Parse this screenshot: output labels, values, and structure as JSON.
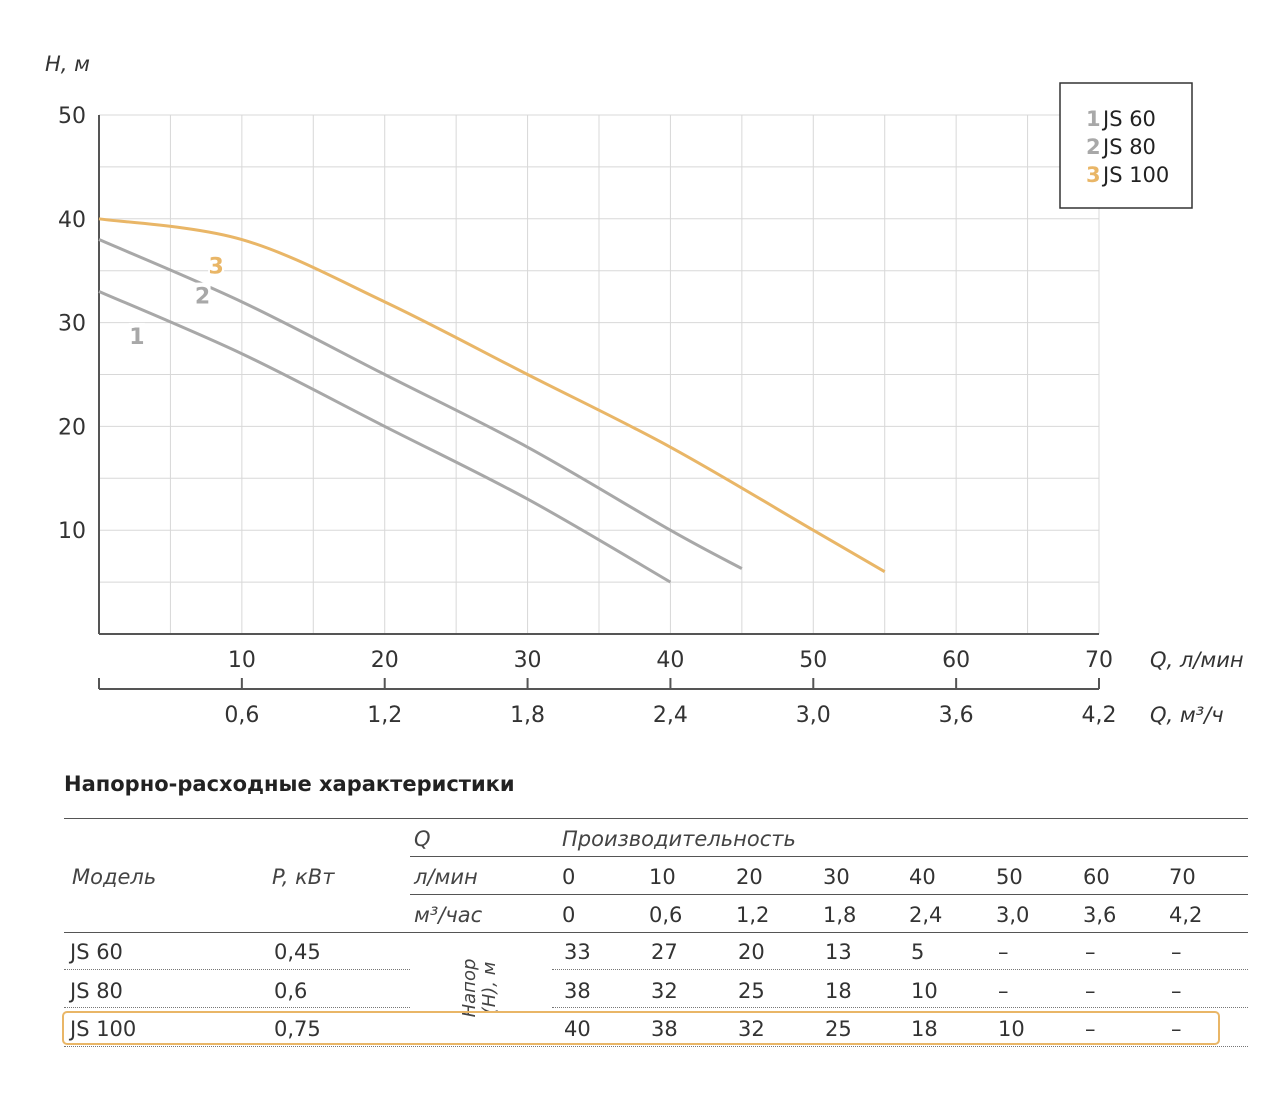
{
  "chart_data": {
    "type": "line",
    "ylabel": "H, м",
    "xlabel": "Q, л/мин",
    "x2label": "Q, м³/ч",
    "xlim": [
      0,
      70
    ],
    "ylim": [
      0,
      50
    ],
    "y_ticks": [
      10,
      20,
      30,
      40,
      50
    ],
    "x_ticks": [
      10,
      20,
      30,
      40,
      50,
      60,
      70
    ],
    "x2_tick_labels": [
      "0,6",
      "1,2",
      "1,8",
      "2,4",
      "3,0",
      "3,6",
      "4,2"
    ],
    "grid": true,
    "legend_position": "top-right",
    "series": [
      {
        "name": "JS 60",
        "number": "1",
        "color": "#A8A8A8",
        "x": [
          0,
          10,
          20,
          30,
          40
        ],
        "y": [
          33,
          27,
          20,
          13,
          5
        ]
      },
      {
        "name": "JS 80",
        "number": "2",
        "color": "#A8A8A8",
        "x": [
          0,
          10,
          20,
          30,
          40,
          45
        ],
        "y": [
          38,
          32,
          25,
          18,
          10,
          6.3
        ]
      },
      {
        "name": "JS 100",
        "number": "3",
        "color": "#E9B667",
        "x": [
          0,
          10,
          20,
          30,
          40,
          50,
          55
        ],
        "y": [
          40,
          38,
          32,
          25,
          18,
          10,
          6
        ]
      }
    ]
  },
  "table": {
    "title": "Напорно-расходные характеристики",
    "col_model": "Модель",
    "col_power": "P, кВт",
    "col_q": "Q",
    "col_perf": "Производительность",
    "unit_lmin": "л/мин",
    "unit_m3": "м³/час",
    "lmin_values": [
      "0",
      "10",
      "20",
      "30",
      "40",
      "50",
      "60",
      "70"
    ],
    "m3_values": [
      "0",
      "0,6",
      "1,2",
      "1,8",
      "2,4",
      "3,0",
      "3,6",
      "4,2"
    ],
    "head_label": "Напор (H), м",
    "rows": [
      {
        "model": "JS 60",
        "power": "0,45",
        "values": [
          "33",
          "27",
          "20",
          "13",
          "5",
          "–",
          "–",
          "–"
        ]
      },
      {
        "model": "JS 80",
        "power": "0,6",
        "values": [
          "38",
          "32",
          "25",
          "18",
          "10",
          "–",
          "–",
          "–"
        ]
      },
      {
        "model": "JS 100",
        "power": "0,75",
        "values": [
          "40",
          "38",
          "32",
          "25",
          "18",
          "10",
          "–",
          "–"
        ]
      }
    ]
  }
}
